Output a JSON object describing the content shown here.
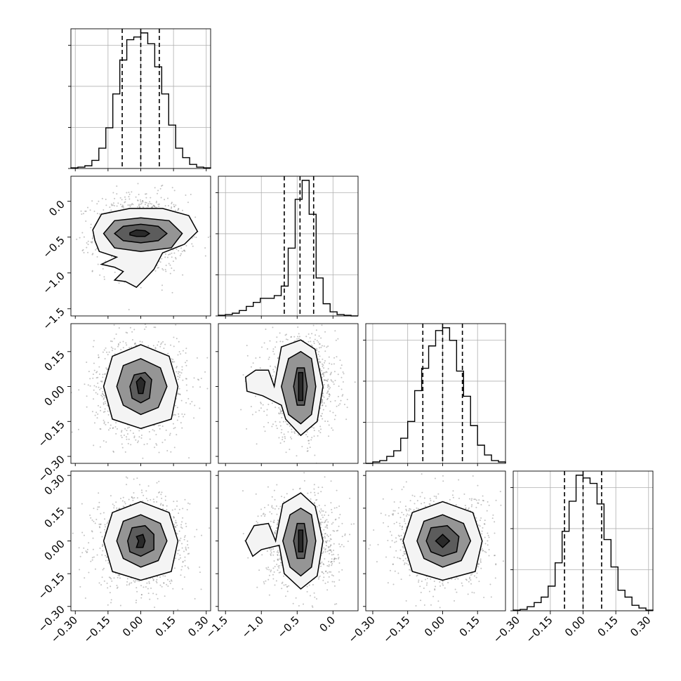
{
  "chart_data": {
    "type": "corner",
    "grid": true,
    "parameters": [
      {
        "range": [
          -0.32,
          0.32
        ],
        "ticks": [
          -0.3,
          -0.15,
          0.0,
          0.15,
          0.3
        ],
        "tick_labels": [
          "−0.30",
          "−0.15",
          "0.00",
          "0.15",
          "0.30"
        ],
        "quantiles": [
          -0.085,
          0.0,
          0.085
        ]
      },
      {
        "range": [
          -1.6,
          0.35
        ],
        "ticks": [
          -1.5,
          -1.0,
          -0.5,
          0.0
        ],
        "tick_labels": [
          "−1.5",
          "−1.0",
          "−0.5",
          "0.0"
        ],
        "quantiles": [
          -0.68,
          -0.46,
          -0.27
        ]
      },
      {
        "range": [
          -0.33,
          0.27
        ],
        "ticks": [
          -0.3,
          -0.15,
          0.0,
          0.15
        ],
        "tick_labels": [
          "−0.30",
          "−0.15",
          "0.00",
          "0.15"
        ],
        "quantiles": [
          -0.085,
          0.0,
          0.085
        ]
      },
      {
        "range": [
          -0.32,
          0.32
        ],
        "ticks": [
          -0.3,
          -0.15,
          0.0,
          0.15,
          0.3
        ],
        "tick_labels": [
          "−0.30",
          "−0.15",
          "0.00",
          "0.15",
          "0.30"
        ],
        "quantiles": [
          -0.085,
          0.0,
          0.085
        ]
      }
    ],
    "histograms": [
      {
        "edges": [
          -0.32,
          -0.288,
          -0.256,
          -0.224,
          -0.192,
          -0.16,
          -0.128,
          -0.096,
          -0.064,
          -0.032,
          0.0,
          0.032,
          0.064,
          0.096,
          0.128,
          0.16,
          0.192,
          0.224,
          0.256,
          0.288,
          0.32
        ],
        "counts": [
          0.5,
          1,
          2,
          6,
          15,
          30,
          55,
          80,
          95,
          97,
          100,
          92,
          75,
          55,
          32,
          15,
          8,
          3,
          1,
          0.5
        ]
      },
      {
        "edges": [
          -1.6,
          -1.5025,
          -1.405,
          -1.3075,
          -1.21,
          -1.1125,
          -1.015,
          -0.9175,
          -0.82,
          -0.7225,
          -0.625,
          -0.5275,
          -0.43,
          -0.3325,
          -0.235,
          -0.1375,
          -0.04,
          0.0575,
          0.155,
          0.2525,
          0.35
        ],
        "counts": [
          0.5,
          1,
          2,
          4,
          7,
          10,
          13,
          13,
          15,
          22,
          50,
          86,
          100,
          75,
          28,
          9,
          3,
          1,
          0.5,
          0
        ]
      },
      {
        "edges": [
          -0.33,
          -0.3,
          -0.27,
          -0.24,
          -0.21,
          -0.18,
          -0.15,
          -0.12,
          -0.09,
          -0.06,
          -0.03,
          0.0,
          0.03,
          0.06,
          0.09,
          0.12,
          0.15,
          0.18,
          0.21,
          0.24,
          0.27
        ],
        "counts": [
          0,
          1,
          2,
          5,
          9,
          18,
          30,
          52,
          68,
          84,
          95,
          97,
          88,
          66,
          48,
          27,
          13,
          6,
          2,
          1
        ]
      },
      {
        "edges": [
          -0.32,
          -0.288,
          -0.256,
          -0.224,
          -0.192,
          -0.16,
          -0.128,
          -0.096,
          -0.064,
          -0.032,
          0.0,
          0.032,
          0.064,
          0.096,
          0.128,
          0.16,
          0.192,
          0.224,
          0.256,
          0.288,
          0.32
        ],
        "counts": [
          0.5,
          1,
          3,
          6,
          10,
          18,
          35,
          58,
          80,
          99,
          97,
          93,
          78,
          52,
          32,
          15,
          10,
          4,
          2,
          0.5
        ]
      }
    ],
    "joint": [
      {
        "row": 1,
        "col": 0,
        "center": [
          0.0,
          -0.45
        ],
        "spread": [
          0.085,
          0.22
        ],
        "levels": [
          [
            [
              -0.05,
              -0.44
            ],
            [
              -0.02,
              -0.4
            ],
            [
              0.02,
              -0.41
            ],
            [
              0.04,
              -0.45
            ],
            [
              0.02,
              -0.49
            ],
            [
              -0.02,
              -0.49
            ],
            [
              -0.05,
              -0.47
            ]
          ],
          [
            [
              -0.12,
              -0.45
            ],
            [
              -0.08,
              -0.35
            ],
            [
              0.0,
              -0.32
            ],
            [
              0.08,
              -0.35
            ],
            [
              0.12,
              -0.45
            ],
            [
              0.08,
              -0.55
            ],
            [
              0.0,
              -0.58
            ],
            [
              -0.08,
              -0.55
            ]
          ],
          [
            [
              -0.17,
              -0.45
            ],
            [
              -0.12,
              -0.27
            ],
            [
              0.0,
              -0.23
            ],
            [
              0.13,
              -0.27
            ],
            [
              0.19,
              -0.45
            ],
            [
              0.14,
              -0.65
            ],
            [
              0.0,
              -0.7
            ],
            [
              -0.12,
              -0.65
            ]
          ],
          [
            [
              -0.22,
              -0.4
            ],
            [
              -0.18,
              -0.18
            ],
            [
              -0.05,
              -0.1
            ],
            [
              0.1,
              -0.1
            ],
            [
              0.22,
              -0.2
            ],
            [
              0.26,
              -0.42
            ],
            [
              0.2,
              -0.6
            ],
            [
              0.1,
              -0.72
            ],
            [
              0.06,
              -0.95
            ],
            [
              0.02,
              -1.08
            ],
            [
              -0.02,
              -1.2
            ],
            [
              -0.07,
              -1.12
            ],
            [
              -0.12,
              -1.1
            ],
            [
              -0.08,
              -0.98
            ],
            [
              -0.12,
              -0.92
            ],
            [
              -0.18,
              -0.88
            ],
            [
              -0.11,
              -0.78
            ],
            [
              -0.19,
              -0.7
            ],
            [
              -0.21,
              -0.55
            ]
          ]
        ]
      },
      {
        "row": 2,
        "col": 0,
        "center": [
          0.0,
          0.0
        ],
        "spread": [
          0.085,
          0.085
        ],
        "levels": [
          [
            [
              -0.02,
              0.02
            ],
            [
              0.0,
              0.04
            ],
            [
              0.02,
              0.02
            ],
            [
              0.01,
              -0.03
            ],
            [
              -0.01,
              -0.03
            ]
          ],
          [
            [
              -0.05,
              0.0
            ],
            [
              -0.03,
              0.05
            ],
            [
              0.02,
              0.06
            ],
            [
              0.05,
              0.03
            ],
            [
              0.04,
              -0.05
            ],
            [
              0.0,
              -0.07
            ],
            [
              -0.04,
              -0.05
            ]
          ],
          [
            [
              -0.11,
              0.0
            ],
            [
              -0.08,
              0.09
            ],
            [
              0.0,
              0.12
            ],
            [
              0.09,
              0.08
            ],
            [
              0.12,
              0.0
            ],
            [
              0.08,
              -0.09
            ],
            [
              0.0,
              -0.12
            ],
            [
              -0.08,
              -0.08
            ]
          ],
          [
            [
              -0.17,
              0.0
            ],
            [
              -0.13,
              0.13
            ],
            [
              0.0,
              0.18
            ],
            [
              0.13,
              0.13
            ],
            [
              0.17,
              0.0
            ],
            [
              0.14,
              -0.14
            ],
            [
              0.0,
              -0.18
            ],
            [
              -0.13,
              -0.14
            ]
          ]
        ]
      },
      {
        "row": 2,
        "col": 1,
        "center": [
          -0.45,
          0.0
        ],
        "spread": [
          0.2,
          0.085
        ],
        "levels": [
          [
            [
              -0.48,
              0.06
            ],
            [
              -0.42,
              0.06
            ],
            [
              -0.42,
              -0.06
            ],
            [
              -0.48,
              -0.06
            ]
          ],
          [
            [
              -0.55,
              0.0
            ],
            [
              -0.5,
              0.08
            ],
            [
              -0.4,
              0.08
            ],
            [
              -0.36,
              0.0
            ],
            [
              -0.4,
              -0.08
            ],
            [
              -0.5,
              -0.08
            ]
          ],
          [
            [
              -0.72,
              0.0
            ],
            [
              -0.62,
              0.12
            ],
            [
              -0.45,
              0.15
            ],
            [
              -0.3,
              0.12
            ],
            [
              -0.24,
              0.0
            ],
            [
              -0.3,
              -0.12
            ],
            [
              -0.45,
              -0.16
            ],
            [
              -0.62,
              -0.12
            ]
          ],
          [
            [
              -0.82,
              0.0
            ],
            [
              -0.72,
              0.17
            ],
            [
              -0.45,
              0.2
            ],
            [
              -0.25,
              0.16
            ],
            [
              -0.14,
              0.0
            ],
            [
              -0.22,
              -0.15
            ],
            [
              -0.45,
              -0.21
            ],
            [
              -0.66,
              -0.14
            ],
            [
              -0.72,
              -0.08
            ],
            [
              -0.98,
              -0.04
            ],
            [
              -1.2,
              -0.02
            ],
            [
              -1.22,
              0.04
            ],
            [
              -1.08,
              0.07
            ],
            [
              -0.9,
              0.07
            ]
          ]
        ]
      },
      {
        "row": 3,
        "col": 0,
        "center": [
          0.0,
          0.0
        ],
        "spread": [
          0.085,
          0.085
        ],
        "levels": [
          [
            [
              -0.02,
              0.02
            ],
            [
              0.01,
              0.03
            ],
            [
              0.02,
              0.0
            ],
            [
              0.01,
              -0.03
            ],
            [
              -0.02,
              -0.03
            ],
            [
              -0.01,
              0.0
            ]
          ],
          [
            [
              -0.06,
              0.0
            ],
            [
              -0.04,
              0.06
            ],
            [
              0.02,
              0.07
            ],
            [
              0.06,
              0.03
            ],
            [
              0.06,
              -0.04
            ],
            [
              0.0,
              -0.07
            ],
            [
              -0.05,
              -0.05
            ]
          ],
          [
            [
              -0.11,
              0.0
            ],
            [
              -0.08,
              0.09
            ],
            [
              0.0,
              0.12
            ],
            [
              0.09,
              0.08
            ],
            [
              0.12,
              0.0
            ],
            [
              0.08,
              -0.09
            ],
            [
              0.0,
              -0.12
            ],
            [
              -0.08,
              -0.08
            ]
          ],
          [
            [
              -0.17,
              0.0
            ],
            [
              -0.13,
              0.13
            ],
            [
              0.0,
              0.18
            ],
            [
              0.13,
              0.13
            ],
            [
              0.17,
              0.0
            ],
            [
              0.14,
              -0.14
            ],
            [
              0.0,
              -0.18
            ],
            [
              -0.13,
              -0.14
            ]
          ]
        ]
      },
      {
        "row": 3,
        "col": 1,
        "center": [
          -0.45,
          0.0
        ],
        "spread": [
          0.2,
          0.085
        ],
        "levels": [
          [
            [
              -0.48,
              0.05
            ],
            [
              -0.42,
              0.05
            ],
            [
              -0.42,
              -0.05
            ],
            [
              -0.48,
              -0.05
            ]
          ],
          [
            [
              -0.55,
              0.0
            ],
            [
              -0.5,
              0.08
            ],
            [
              -0.4,
              0.08
            ],
            [
              -0.36,
              0.0
            ],
            [
              -0.4,
              -0.08
            ],
            [
              -0.5,
              -0.08
            ]
          ],
          [
            [
              -0.7,
              0.0
            ],
            [
              -0.6,
              0.12
            ],
            [
              -0.45,
              0.15
            ],
            [
              -0.3,
              0.12
            ],
            [
              -0.24,
              0.0
            ],
            [
              -0.3,
              -0.12
            ],
            [
              -0.45,
              -0.16
            ],
            [
              -0.6,
              -0.12
            ]
          ],
          [
            [
              -0.8,
              0.0
            ],
            [
              -0.7,
              0.17
            ],
            [
              -0.45,
              0.22
            ],
            [
              -0.25,
              0.16
            ],
            [
              -0.14,
              0.0
            ],
            [
              -0.22,
              -0.16
            ],
            [
              -0.45,
              -0.22
            ],
            [
              -0.68,
              -0.15
            ],
            [
              -0.75,
              -0.02
            ],
            [
              -1.0,
              -0.04
            ],
            [
              -1.12,
              -0.07
            ],
            [
              -1.22,
              0.0
            ],
            [
              -1.1,
              0.07
            ],
            [
              -0.9,
              0.08
            ]
          ]
        ]
      },
      {
        "row": 3,
        "col": 2,
        "center": [
          0.0,
          0.0
        ],
        "spread": [
          0.085,
          0.085
        ],
        "levels": [
          [
            [
              -0.03,
              0.0
            ],
            [
              0.0,
              0.03
            ],
            [
              0.03,
              0.0
            ],
            [
              0.0,
              -0.03
            ]
          ],
          [
            [
              -0.07,
              0.0
            ],
            [
              -0.05,
              0.06
            ],
            [
              0.02,
              0.07
            ],
            [
              0.07,
              0.02
            ],
            [
              0.06,
              -0.05
            ],
            [
              0.0,
              -0.07
            ],
            [
              -0.05,
              -0.05
            ]
          ],
          [
            [
              -0.11,
              0.0
            ],
            [
              -0.08,
              0.09
            ],
            [
              0.0,
              0.12
            ],
            [
              0.09,
              0.08
            ],
            [
              0.12,
              0.0
            ],
            [
              0.08,
              -0.09
            ],
            [
              0.0,
              -0.12
            ],
            [
              -0.08,
              -0.08
            ]
          ],
          [
            [
              -0.17,
              0.0
            ],
            [
              -0.13,
              0.13
            ],
            [
              0.0,
              0.18
            ],
            [
              0.13,
              0.13
            ],
            [
              0.17,
              0.0
            ],
            [
              0.14,
              -0.14
            ],
            [
              0.0,
              -0.18
            ],
            [
              -0.13,
              -0.14
            ]
          ]
        ]
      }
    ]
  }
}
